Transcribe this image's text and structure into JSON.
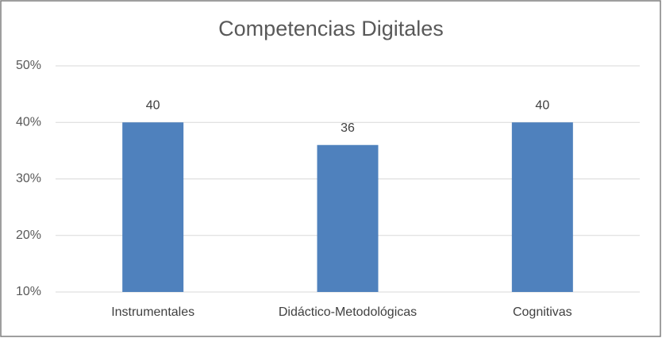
{
  "chart_data": {
    "type": "bar",
    "title": "Competencias Digitales",
    "categories": [
      "Instrumentales",
      "Didáctico-Metodológicas",
      "Cognitivas"
    ],
    "values": [
      40,
      36,
      40
    ],
    "color": "#4f81bd",
    "ylim": [
      10,
      50
    ],
    "yticks": [
      {
        "value": 10,
        "label": "10%"
      },
      {
        "value": 20,
        "label": "20%"
      },
      {
        "value": 30,
        "label": "30%"
      },
      {
        "value": 40,
        "label": "40%"
      },
      {
        "value": 50,
        "label": "50%"
      }
    ],
    "grid": true
  }
}
